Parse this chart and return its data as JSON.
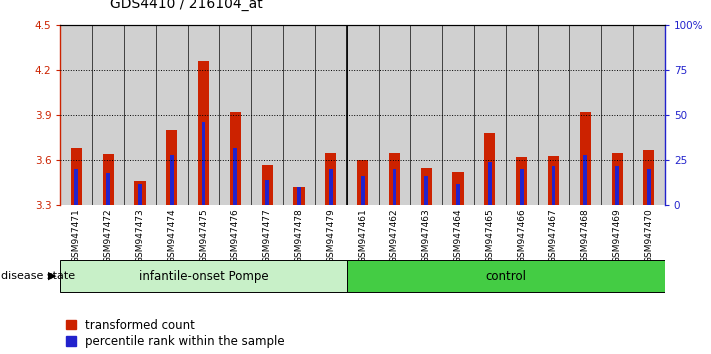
{
  "title": "GDS4410 / 216104_at",
  "samples": [
    "GSM947471",
    "GSM947472",
    "GSM947473",
    "GSM947474",
    "GSM947475",
    "GSM947476",
    "GSM947477",
    "GSM947478",
    "GSM947479",
    "GSM947461",
    "GSM947462",
    "GSM947463",
    "GSM947464",
    "GSM947465",
    "GSM947466",
    "GSM947467",
    "GSM947468",
    "GSM947469",
    "GSM947470"
  ],
  "transformed_count": [
    3.68,
    3.64,
    3.46,
    3.8,
    4.26,
    3.92,
    3.57,
    3.42,
    3.65,
    3.6,
    3.65,
    3.55,
    3.52,
    3.78,
    3.62,
    3.63,
    3.92,
    3.65,
    3.67
  ],
  "percentile_rank": [
    20,
    18,
    12,
    28,
    46,
    32,
    14,
    10,
    20,
    16,
    20,
    16,
    12,
    24,
    20,
    22,
    28,
    22,
    20
  ],
  "pompe_count": 9,
  "control_count": 10,
  "pompe_label": "infantile-onset Pompe",
  "control_label": "control",
  "pompe_color": "#c8f0c8",
  "control_color": "#44cc44",
  "ymin": 3.3,
  "ymax": 4.5,
  "yticks": [
    3.3,
    3.6,
    3.9,
    4.2,
    4.5
  ],
  "ytick_labels": [
    "3.3",
    "3.6",
    "3.9",
    "4.2",
    "4.5"
  ],
  "y2ticks": [
    0,
    25,
    50,
    75,
    100
  ],
  "y2tick_labels": [
    "0",
    "25",
    "50",
    "75",
    "100%"
  ],
  "dotted_yticks": [
    3.6,
    3.9,
    4.2
  ],
  "bar_color": "#cc2200",
  "blue_color": "#2222cc",
  "col_bg_color": "#d0d0d0",
  "title_fontsize": 10,
  "tick_fontsize": 7.5,
  "label_fontsize": 8.5,
  "disease_state_label": "disease state"
}
